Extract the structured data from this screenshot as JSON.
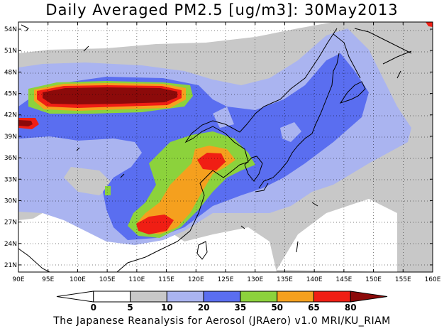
{
  "title": "Daily Averaged PM2.5 [ug/m3]: 30May2013",
  "footer": "The Japanese Reanalysis for Aerosol (JRAero) v1.0 MRI/KU_RIAM",
  "map": {
    "lon_range": [
      90,
      160
    ],
    "lat_range": [
      20,
      55
    ],
    "lon_ticks": [
      "90E",
      "95E",
      "100E",
      "105E",
      "110E",
      "115E",
      "120E",
      "125E",
      "130E",
      "135E",
      "140E",
      "145E",
      "150E",
      "155E",
      "160E"
    ],
    "lat_ticks": [
      "21N",
      "24N",
      "27N",
      "30N",
      "33N",
      "36N",
      "39N",
      "42N",
      "45N",
      "48N",
      "51N",
      "54N"
    ],
    "grid": "dashed"
  },
  "colorbar": {
    "labels": [
      "0",
      "5",
      "10",
      "20",
      "35",
      "50",
      "65",
      "80"
    ],
    "colors": [
      "#ffffff",
      "#ffffff",
      "#c8c8c8",
      "#aab4f0",
      "#5a6ef0",
      "#8cd23c",
      "#f5a01e",
      "#f01e14",
      "#8c0a0a"
    ]
  }
}
